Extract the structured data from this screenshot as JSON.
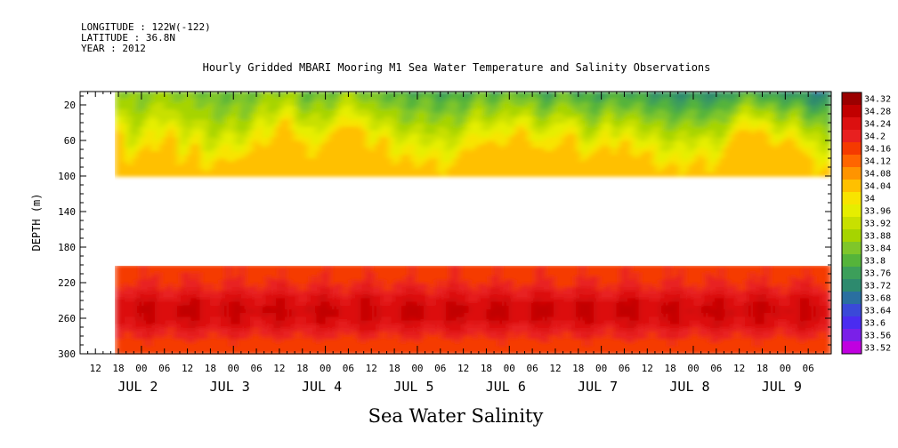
{
  "header": {
    "longitude": "LONGITUDE : 122W(-122)",
    "latitude": "LATITUDE : 36.8N",
    "year": "YEAR : 2012"
  },
  "chart_data": {
    "type": "heatmap",
    "title": "Hourly Gridded MBARI Mooring M1 Sea Water Temperature and Salinity Observations",
    "xlabel": "Sea Water Salinity",
    "ylabel": "DEPTH (m)",
    "x_axis": {
      "unit": "hours since Jul 1 00:00, 2012",
      "range": [
        8,
        204
      ],
      "hour_ticks": [
        "12",
        "18",
        "00",
        "06",
        "12",
        "18",
        "00",
        "06",
        "12",
        "18",
        "00",
        "06",
        "12",
        "18",
        "00",
        "06",
        "12",
        "18",
        "00",
        "06",
        "12",
        "18",
        "00",
        "06",
        "12",
        "18",
        "00",
        "06",
        "12",
        "18",
        "00",
        "06"
      ],
      "hour_tick_values": [
        12,
        18,
        24,
        30,
        36,
        42,
        48,
        54,
        60,
        66,
        72,
        78,
        84,
        90,
        96,
        102,
        108,
        114,
        120,
        126,
        132,
        138,
        144,
        150,
        156,
        162,
        168,
        174,
        180,
        186,
        192,
        198
      ],
      "day_labels": [
        "JUL  2",
        "JUL  3",
        "JUL  4",
        "JUL  5",
        "JUL  6",
        "JUL  7",
        "JUL  8",
        "JUL  9"
      ],
      "day_label_values": [
        24,
        48,
        72,
        96,
        120,
        144,
        168,
        192
      ],
      "data_start": 17
    },
    "y_axis": {
      "range": [
        300,
        5
      ],
      "tick_labels": [
        "20",
        "60",
        "100",
        "140",
        "180",
        "220",
        "260",
        "300"
      ],
      "tick_values": [
        20,
        60,
        100,
        140,
        180,
        220,
        260,
        300
      ],
      "reversed": true
    },
    "bands": [
      {
        "name": "upper",
        "depth_range": [
          5,
          100
        ],
        "value_range": [
          33.62,
          34.08
        ]
      },
      {
        "name": "lower",
        "depth_range": [
          200,
          300
        ],
        "value_range": [
          34.18,
          34.32
        ]
      }
    ],
    "colorbar": {
      "labels": [
        "34.32",
        "34.28",
        "34.24",
        "34.2",
        "34.16",
        "34.12",
        "34.08",
        "34.04",
        "34",
        "33.96",
        "33.92",
        "33.88",
        "33.84",
        "33.8",
        "33.76",
        "33.72",
        "33.68",
        "33.64",
        "33.6",
        "33.56",
        "33.52"
      ],
      "colors": [
        "#9b0000",
        "#c10000",
        "#dc1010",
        "#e82020",
        "#f53a00",
        "#ff6500",
        "#ff9400",
        "#ffc000",
        "#f8e400",
        "#e6ee00",
        "#c8e000",
        "#a6d400",
        "#7fc62a",
        "#55b43a",
        "#3c9f5a",
        "#2d8a6e",
        "#2a6fa0",
        "#3a49d8",
        "#4a2cf0",
        "#7a20e8",
        "#c000e0"
      ],
      "min": 33.52,
      "max": 34.32,
      "step": 0.04
    }
  }
}
